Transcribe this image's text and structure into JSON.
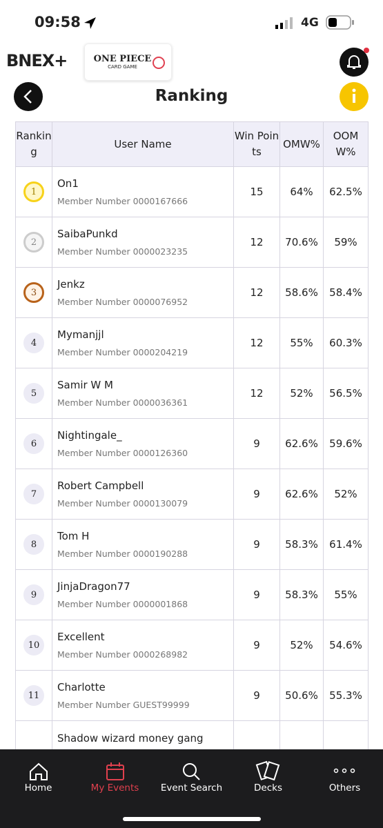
{
  "status_bar": {
    "time": "09:58",
    "network": "4G"
  },
  "header": {
    "logo": "BNEX+",
    "brand": "ONE PIECE",
    "brand_sub": "CARD GAME"
  },
  "page": {
    "title": "Ranking"
  },
  "table": {
    "columns": [
      "Ranking",
      "User Name",
      "Win Points",
      "OMW%",
      "OOMW%"
    ],
    "rows": [
      {
        "rank": "1",
        "name": "On1",
        "member": "Member Number 0000167666",
        "points": "15",
        "omw": "64%",
        "oomw": "62.5%"
      },
      {
        "rank": "2",
        "name": "SaibaPunkd",
        "member": "Member Number 0000023235",
        "points": "12",
        "omw": "70.6%",
        "oomw": "59%"
      },
      {
        "rank": "3",
        "name": "Jenkz",
        "member": "Member Number 0000076952",
        "points": "12",
        "omw": "58.6%",
        "oomw": "58.4%"
      },
      {
        "rank": "4",
        "name": "Mymanjjl",
        "member": "Member Number 0000204219",
        "points": "12",
        "omw": "55%",
        "oomw": "60.3%"
      },
      {
        "rank": "5",
        "name": "Samir W M",
        "member": "Member Number 0000036361",
        "points": "12",
        "omw": "52%",
        "oomw": "56.5%"
      },
      {
        "rank": "6",
        "name": "Nightingale_",
        "member": "Member Number 0000126360",
        "points": "9",
        "omw": "62.6%",
        "oomw": "59.6%"
      },
      {
        "rank": "7",
        "name": "Robert Campbell",
        "member": "Member Number 0000130079",
        "points": "9",
        "omw": "62.6%",
        "oomw": "52%"
      },
      {
        "rank": "8",
        "name": "Tom H",
        "member": "Member Number 0000190288",
        "points": "9",
        "omw": "58.3%",
        "oomw": "61.4%"
      },
      {
        "rank": "9",
        "name": "JinjaDragon77",
        "member": "Member Number 0000001868",
        "points": "9",
        "omw": "58.3%",
        "oomw": "55%"
      },
      {
        "rank": "10",
        "name": "Excellent",
        "member": "Member Number 0000268982",
        "points": "9",
        "omw": "52%",
        "oomw": "54.6%"
      },
      {
        "rank": "11",
        "name": "Charlotte",
        "member": "Member Number GUEST99999",
        "points": "9",
        "omw": "50.6%",
        "oomw": "55.3%"
      },
      {
        "name": "Shadow wizard money gang"
      }
    ]
  },
  "nav": [
    "Home",
    "My Events",
    "Event Search",
    "Decks",
    "Others"
  ]
}
